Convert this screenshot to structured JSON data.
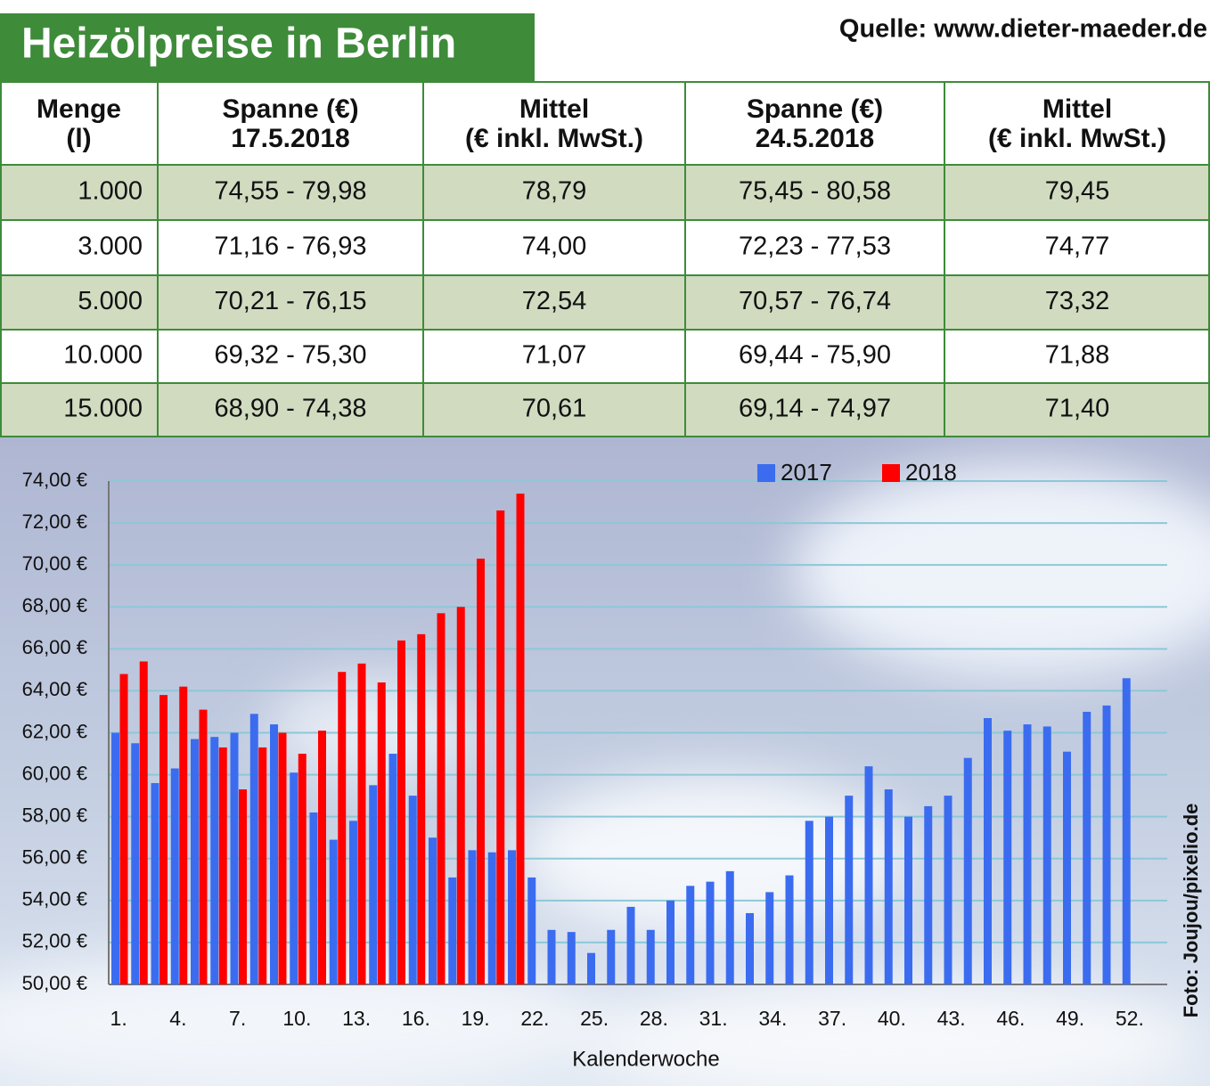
{
  "header": {
    "title": "Heizölpreise in Berlin",
    "source": "Quelle: www.dieter-maeder.de"
  },
  "table": {
    "header": [
      [
        "Menge",
        "(l)"
      ],
      [
        "Spanne (€)",
        "17.5.2018"
      ],
      [
        "Mittel",
        "(€ inkl. MwSt.)"
      ],
      [
        "Spanne (€)",
        "24.5.2018"
      ],
      [
        "Mittel",
        "(€ inkl. MwSt.)"
      ]
    ],
    "rows": [
      [
        "1.000",
        "74,55 - 79,98",
        "78,79",
        "75,45 - 80,58",
        "79,45"
      ],
      [
        "3.000",
        "71,16 - 76,93",
        "74,00",
        "72,23 - 77,53",
        "74,77"
      ],
      [
        "5.000",
        "70,21 - 76,15",
        "72,54",
        "70,57 - 76,74",
        "73,32"
      ],
      [
        "10.000",
        "69,32 - 75,30",
        "71,07",
        "69,44 - 75,90",
        "71,88"
      ],
      [
        "15.000",
        "68,90 - 74,38",
        "70,61",
        "69,14 - 74,97",
        "71,40"
      ]
    ]
  },
  "chart_data": {
    "type": "bar",
    "x_label": "Kalenderwoche",
    "credit": "Foto: Joujou/pixelio.de",
    "categories": [
      "1.",
      null,
      null,
      "4.",
      null,
      null,
      "7.",
      null,
      null,
      "10.",
      null,
      null,
      "13.",
      null,
      null,
      "16.",
      null,
      null,
      "19.",
      null,
      null,
      "22.",
      null,
      null,
      "25.",
      null,
      null,
      "28.",
      null,
      null,
      "31.",
      null,
      null,
      "34.",
      null,
      null,
      "37.",
      null,
      null,
      "40.",
      null,
      null,
      "43.",
      null,
      null,
      "46.",
      null,
      null,
      "49.",
      null,
      null,
      "52."
    ],
    "series": [
      {
        "name": "2017",
        "color": "#3b6cf0",
        "values": [
          62.0,
          61.5,
          59.6,
          60.3,
          61.7,
          61.8,
          62.0,
          62.9,
          62.4,
          60.1,
          58.2,
          56.9,
          57.8,
          59.5,
          61.0,
          59.0,
          57.0,
          55.1,
          56.4,
          56.3,
          56.4,
          55.1,
          52.6,
          52.5,
          51.5,
          52.6,
          53.7,
          52.6,
          54.0,
          54.7,
          54.9,
          55.4,
          53.4,
          54.4,
          55.2,
          57.8,
          58.0,
          59.0,
          60.4,
          59.3,
          58.0,
          58.5,
          59.0,
          60.8,
          62.7,
          62.1,
          62.4,
          62.3,
          61.1,
          63.0,
          63.3,
          64.6
        ]
      },
      {
        "name": "2018",
        "color": "#ff0000",
        "values": [
          64.8,
          65.4,
          63.8,
          64.2,
          63.1,
          61.3,
          59.3,
          61.3,
          62.0,
          61.0,
          62.1,
          64.9,
          65.3,
          64.4,
          66.4,
          66.7,
          67.7,
          68.0,
          70.3,
          72.6,
          73.4,
          null,
          null,
          null,
          null,
          null,
          null,
          null,
          null,
          null,
          null,
          null,
          null,
          null,
          null,
          null,
          null,
          null,
          null,
          null,
          null,
          null,
          null,
          null,
          null,
          null,
          null,
          null,
          null,
          null,
          null,
          null
        ]
      }
    ],
    "ylim": [
      50,
      74
    ],
    "yticks": [
      {
        "value": 50,
        "label": "50,00 €"
      },
      {
        "value": 52,
        "label": "52,00 €"
      },
      {
        "value": 54,
        "label": "54,00 €"
      },
      {
        "value": 56,
        "label": "56,00 €"
      },
      {
        "value": 58,
        "label": "58,00 €"
      },
      {
        "value": 60,
        "label": "60,00 €"
      },
      {
        "value": 62,
        "label": "62,00 €"
      },
      {
        "value": 64,
        "label": "64,00 €"
      },
      {
        "value": 66,
        "label": "66,00 €"
      },
      {
        "value": 68,
        "label": "68,00 €"
      },
      {
        "value": 70,
        "label": "70,00 €"
      },
      {
        "value": 72,
        "label": "72,00 €"
      },
      {
        "value": 74,
        "label": "74,00 €"
      }
    ],
    "grid": true
  }
}
